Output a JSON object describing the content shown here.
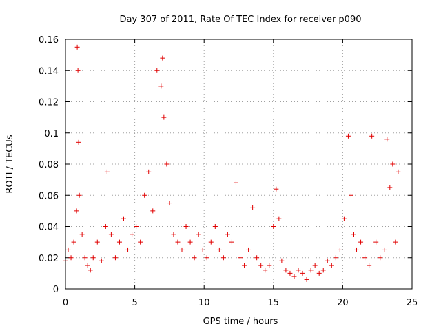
{
  "chart_data": {
    "type": "scatter",
    "title": "Day 307 of 2011, Rate Of TEC Index for receiver p090",
    "xlabel": "GPS time / hours",
    "ylabel": "ROTI / TECUs",
    "xlim": [
      0,
      25
    ],
    "ylim": [
      0,
      0.16
    ],
    "xticks": [
      0,
      5,
      10,
      15,
      20,
      25
    ],
    "xtick_labels": [
      "0",
      "5",
      "10",
      "15",
      "20",
      "25"
    ],
    "yticks": [
      0,
      0.02,
      0.04,
      0.06,
      0.08,
      0.1,
      0.12,
      0.14,
      0.16
    ],
    "ytick_labels": [
      "0",
      "0.02",
      "0.04",
      "0.06",
      "0.08",
      "0.1",
      "0.12",
      "0.14",
      "0.16"
    ],
    "grid": true,
    "marker": "+",
    "color": "#e00000",
    "series": [
      {
        "x": [
          0.0,
          0.2,
          0.4,
          0.6,
          0.8,
          0.85,
          0.9,
          0.95,
          1.0,
          1.2,
          1.4,
          1.6,
          1.8,
          2.0,
          2.3,
          2.6,
          2.9,
          3.0,
          3.3,
          3.6,
          3.9,
          4.2,
          4.5,
          4.8,
          5.1,
          5.4,
          5.7,
          6.0,
          6.3,
          6.6,
          6.9,
          7.0,
          7.1,
          7.3,
          7.5,
          7.8,
          8.1,
          8.4,
          8.7,
          9.0,
          9.3,
          9.6,
          9.9,
          10.2,
          10.5,
          10.8,
          11.1,
          11.4,
          11.7,
          12.0,
          12.3,
          12.6,
          12.9,
          13.2,
          13.5,
          13.8,
          14.1,
          14.4,
          14.7,
          15.0,
          15.2,
          15.4,
          15.6,
          15.9,
          16.2,
          16.5,
          16.8,
          17.1,
          17.4,
          17.7,
          18.0,
          18.3,
          18.6,
          18.9,
          19.2,
          19.5,
          19.8,
          20.1,
          20.4,
          20.6,
          20.8,
          21.0,
          21.3,
          21.6,
          21.9,
          22.1,
          22.4,
          22.7,
          23.0,
          23.2,
          23.4,
          23.6,
          23.8,
          24.0
        ],
        "y": [
          0.018,
          0.025,
          0.02,
          0.03,
          0.05,
          0.155,
          0.14,
          0.094,
          0.06,
          0.035,
          0.02,
          0.015,
          0.012,
          0.02,
          0.03,
          0.018,
          0.04,
          0.075,
          0.035,
          0.02,
          0.03,
          0.045,
          0.025,
          0.035,
          0.04,
          0.03,
          0.06,
          0.075,
          0.05,
          0.14,
          0.13,
          0.148,
          0.11,
          0.08,
          0.055,
          0.035,
          0.03,
          0.025,
          0.04,
          0.03,
          0.02,
          0.035,
          0.025,
          0.02,
          0.03,
          0.04,
          0.025,
          0.02,
          0.035,
          0.03,
          0.068,
          0.02,
          0.015,
          0.025,
          0.052,
          0.02,
          0.015,
          0.012,
          0.015,
          0.04,
          0.064,
          0.045,
          0.018,
          0.012,
          0.01,
          0.008,
          0.012,
          0.01,
          0.006,
          0.012,
          0.015,
          0.01,
          0.012,
          0.018,
          0.015,
          0.02,
          0.025,
          0.045,
          0.098,
          0.06,
          0.035,
          0.025,
          0.03,
          0.02,
          0.015,
          0.098,
          0.03,
          0.02,
          0.025,
          0.096,
          0.065,
          0.08,
          0.03,
          0.075
        ]
      }
    ]
  }
}
